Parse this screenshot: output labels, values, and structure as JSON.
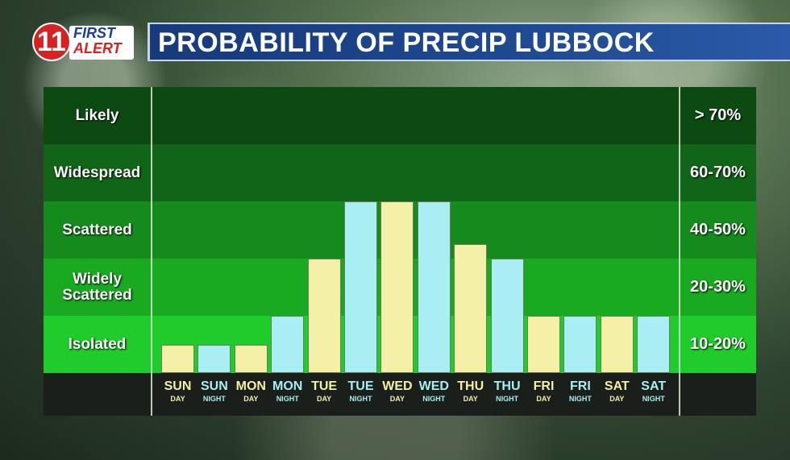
{
  "header": {
    "logo_number": "11",
    "logo_line1": "FIRST",
    "logo_line2": "ALERT",
    "title": "PROBABILITY OF PRECIP LUBBOCK"
  },
  "bands": [
    {
      "label": "Likely",
      "range": "> 70%",
      "color": "#0d4a12"
    },
    {
      "label": "Widespread",
      "range": "60-70%",
      "color": "#116518"
    },
    {
      "label": "Scattered",
      "range": "40-50%",
      "color": "#158a1d"
    },
    {
      "label": "Widely Scattered",
      "range": "20-30%",
      "color": "#19aa22"
    },
    {
      "label": "Isolated",
      "range": "10-20%",
      "color": "#1fcc2b"
    }
  ],
  "colors": {
    "day_bar": "#f5f0a8",
    "night_bar": "#a8eef2"
  },
  "chart_data": {
    "type": "bar",
    "title": "PROBABILITY OF PRECIP LUBBOCK",
    "categories": [
      {
        "day": "SUN",
        "period": "DAY"
      },
      {
        "day": "SUN",
        "period": "NIGHT"
      },
      {
        "day": "MON",
        "period": "DAY"
      },
      {
        "day": "MON",
        "period": "NIGHT"
      },
      {
        "day": "TUE",
        "period": "DAY"
      },
      {
        "day": "TUE",
        "period": "NIGHT"
      },
      {
        "day": "WED",
        "period": "DAY"
      },
      {
        "day": "WED",
        "period": "NIGHT"
      },
      {
        "day": "THU",
        "period": "DAY"
      },
      {
        "day": "THU",
        "period": "NIGHT"
      },
      {
        "day": "FRI",
        "period": "DAY"
      },
      {
        "day": "FRI",
        "period": "NIGHT"
      },
      {
        "day": "SAT",
        "period": "DAY"
      },
      {
        "day": "SAT",
        "period": "NIGHT"
      }
    ],
    "values_band_level": [
      0.5,
      0.5,
      0.5,
      1.0,
      2.0,
      3.0,
      3.0,
      3.0,
      2.25,
      2.0,
      1.0,
      1.0,
      1.0,
      1.0
    ],
    "ylim": [
      0,
      5
    ]
  }
}
